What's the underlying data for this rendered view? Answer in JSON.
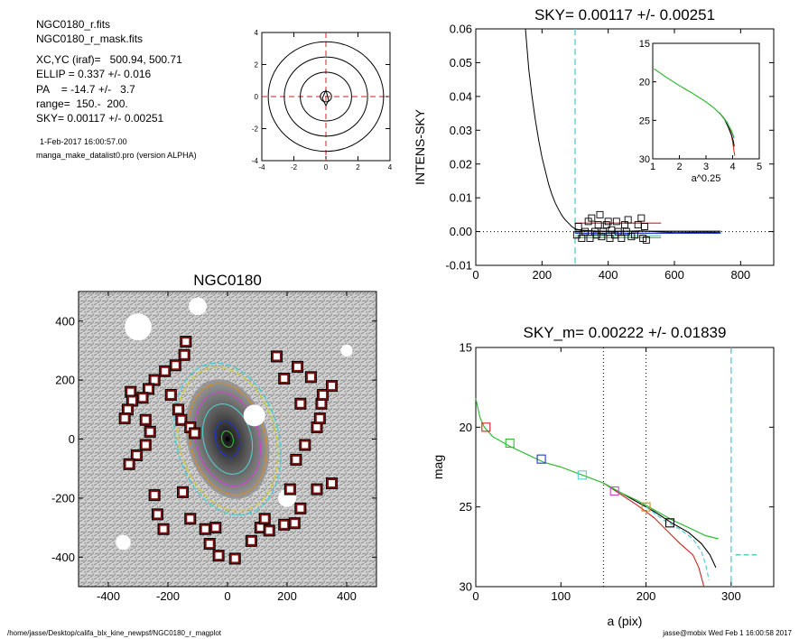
{
  "info": {
    "file1": "NGC0180_r.fits",
    "file2": "NGC0180_r_mask.fits",
    "xcyc": "XC,YC (iraf)=   500.94, 500.71",
    "ellip": "ELLIP = 0.337 +/- 0.016",
    "pa": "PA    = -14.7 +/-   3.7",
    "range": "range=  150.-  200.",
    "sky": "SKY= 0.00117 +/- 0.00251",
    "date": "1-Feb-2017 16:00:57.00",
    "program": "manga_make_datalist0.pro (version ALPHA)"
  },
  "footer": {
    "left": "/home/jasse/Desktop/califa_blx_kine_newpsf/NGC0180_r_magplot",
    "right": "jasse@mobix  Wed Feb  1 16:00:58 2017"
  },
  "colors": {
    "black": "#000000",
    "red": "#cc2222",
    "green": "#33bb33",
    "blue": "#2233cc",
    "cyan": "#55cccc",
    "magenta": "#cc44cc",
    "orange": "#d08a2a",
    "darkred": "#7a1010"
  },
  "chart_data": [
    {
      "id": "contour",
      "type": "contour",
      "xlim": [
        -4,
        4
      ],
      "ylim": [
        -4,
        4
      ],
      "xticks": [
        "-4",
        "-2",
        "0",
        "2",
        "4"
      ],
      "yticks": [
        "-4",
        "-2",
        "0",
        "2",
        "4"
      ],
      "contour_radii": [
        0.35,
        1.6,
        2.6,
        3.6
      ]
    },
    {
      "id": "sky",
      "type": "line",
      "title": "SKY= 0.00117 +/- 0.00251",
      "ylabel": "INTENS-SKY",
      "xlim": [
        0,
        900
      ],
      "ylim": [
        -0.01,
        0.06
      ],
      "xticks": [
        "0",
        "200",
        "400",
        "600",
        "800"
      ],
      "yticks": [
        "-0.01",
        "0.00",
        "0.01",
        "0.02",
        "0.03",
        "0.04",
        "0.05",
        "0.06"
      ],
      "profile": [
        [
          150,
          0.06
        ],
        [
          160,
          0.048
        ],
        [
          170,
          0.04
        ],
        [
          180,
          0.033
        ],
        [
          190,
          0.027
        ],
        [
          200,
          0.022
        ],
        [
          210,
          0.018
        ],
        [
          220,
          0.014
        ],
        [
          230,
          0.011
        ],
        [
          240,
          0.0085
        ],
        [
          250,
          0.0065
        ],
        [
          260,
          0.0048
        ],
        [
          270,
          0.0035
        ],
        [
          280,
          0.0025
        ],
        [
          290,
          0.0015
        ],
        [
          300,
          0.0008
        ],
        [
          320,
          0.0004
        ],
        [
          350,
          0.0002
        ],
        [
          400,
          0.0
        ],
        [
          500,
          0.0002
        ],
        [
          600,
          -0.0003
        ],
        [
          700,
          -0.0002
        ],
        [
          740,
          -0.0003
        ]
      ],
      "squares": [
        [
          305,
          -0.001
        ],
        [
          310,
          0.0015
        ],
        [
          320,
          -0.002
        ],
        [
          330,
          0.0
        ],
        [
          340,
          0.003
        ],
        [
          345,
          -0.002
        ],
        [
          350,
          0.004
        ],
        [
          360,
          0.0
        ],
        [
          365,
          -0.001
        ],
        [
          370,
          0.002
        ],
        [
          375,
          0.005
        ],
        [
          380,
          -0.0015
        ],
        [
          385,
          0.0
        ],
        [
          395,
          0.002
        ],
        [
          400,
          0.003
        ],
        [
          405,
          -0.002
        ],
        [
          410,
          0.0005
        ],
        [
          420,
          -0.001
        ],
        [
          425,
          0.003
        ],
        [
          430,
          0.0
        ],
        [
          440,
          -0.002
        ],
        [
          450,
          0.002
        ],
        [
          455,
          0.0
        ],
        [
          460,
          0.0035
        ],
        [
          470,
          -0.0015
        ],
        [
          480,
          -0.001
        ],
        [
          490,
          0.002
        ],
        [
          500,
          0.004
        ],
        [
          505,
          -0.002
        ],
        [
          510,
          0.0015
        ],
        [
          515,
          -0.0025
        ]
      ],
      "hlines": [
        {
          "color": "red",
          "y": 0.0025,
          "x": [
            300,
            560
          ]
        },
        {
          "color": "green",
          "y": -0.0018,
          "x": [
            300,
            560
          ]
        },
        {
          "color": "blue",
          "y": -0.0005,
          "x": [
            300,
            740
          ]
        },
        {
          "color": "black",
          "y": 0.0001,
          "x": [
            300,
            740
          ]
        },
        {
          "color": "cyan",
          "y": -0.0012,
          "x": [
            300,
            560
          ]
        }
      ],
      "vline_cyan": 300,
      "inset": {
        "xlabel": "a^0.25",
        "xlim": [
          1,
          5
        ],
        "ylim": [
          15,
          30
        ],
        "xticks": [
          "1",
          "2",
          "3",
          "4",
          "5"
        ],
        "yticks": [
          "15",
          "20",
          "25",
          "30"
        ],
        "green": [
          [
            1.05,
            18.3
          ],
          [
            1.5,
            19.4
          ],
          [
            2.0,
            20.5
          ],
          [
            2.5,
            21.5
          ],
          [
            3.0,
            22.6
          ],
          [
            3.3,
            23.4
          ],
          [
            3.6,
            24.4
          ],
          [
            3.8,
            25.4
          ],
          [
            3.95,
            26.3
          ],
          [
            4.05,
            27.2
          ]
        ],
        "red": [
          [
            3.5,
            24.0
          ],
          [
            3.7,
            24.8
          ],
          [
            3.85,
            25.8
          ],
          [
            3.95,
            26.8
          ],
          [
            4.0,
            27.8
          ],
          [
            4.05,
            29.0
          ],
          [
            4.08,
            29.6
          ]
        ],
        "black": [
          [
            3.5,
            24.0
          ],
          [
            3.7,
            24.9
          ],
          [
            3.85,
            26.0
          ],
          [
            3.95,
            26.9
          ],
          [
            4.02,
            27.6
          ],
          [
            4.06,
            28.4
          ]
        ],
        "blue": [
          [
            3.6,
            24.4
          ],
          [
            3.8,
            25.3
          ],
          [
            3.95,
            26.4
          ],
          [
            4.05,
            27.3
          ]
        ]
      }
    },
    {
      "id": "image",
      "type": "image",
      "title": "NGC0180",
      "xlim": [
        -500,
        500
      ],
      "ylim": [
        -500,
        500
      ],
      "xticks": [
        "-400",
        "-200",
        "0",
        "200",
        "400"
      ],
      "yticks": [
        "-400",
        "-200",
        "0",
        "200",
        "400"
      ],
      "squares": [
        [
          -140,
          330
        ],
        [
          -145,
          285
        ],
        [
          -175,
          250
        ],
        [
          -210,
          230
        ],
        [
          -245,
          200
        ],
        [
          -265,
          170
        ],
        [
          -285,
          140
        ],
        [
          -190,
          150
        ],
        [
          -165,
          100
        ],
        [
          -155,
          65
        ],
        [
          -125,
          40
        ],
        [
          -110,
          20
        ],
        [
          -325,
          160
        ],
        [
          -320,
          130
        ],
        [
          -335,
          100
        ],
        [
          -345,
          70
        ],
        [
          -275,
          65
        ],
        [
          -260,
          25
        ],
        [
          -275,
          -20
        ],
        [
          -305,
          -55
        ],
        [
          -330,
          -85
        ],
        [
          -245,
          -190
        ],
        [
          -235,
          -255
        ],
        [
          -215,
          -305
        ],
        [
          -125,
          -270
        ],
        [
          -75,
          -305
        ],
        [
          -60,
          -355
        ],
        [
          -30,
          -395
        ],
        [
          25,
          -405
        ],
        [
          80,
          -345
        ],
        [
          110,
          -300
        ],
        [
          190,
          -290
        ],
        [
          225,
          -285
        ],
        [
          245,
          -235
        ],
        [
          300,
          -170
        ],
        [
          350,
          -150
        ],
        [
          230,
          -70
        ],
        [
          260,
          -20
        ],
        [
          300,
          40
        ],
        [
          310,
          70
        ],
        [
          315,
          120
        ],
        [
          320,
          150
        ],
        [
          350,
          180
        ],
        [
          280,
          210
        ],
        [
          235,
          245
        ],
        [
          165,
          280
        ],
        [
          190,
          205
        ],
        [
          245,
          120
        ],
        [
          210,
          -170
        ],
        [
          125,
          -270
        ],
        [
          -40,
          -300
        ],
        [
          140,
          -310
        ],
        [
          -150,
          -180
        ]
      ],
      "ellipses": [
        {
          "color": "cyan",
          "a": 260,
          "b": 172,
          "dashed": true
        },
        {
          "color": "yellow",
          "a": 245,
          "b": 162,
          "dashed": true
        },
        {
          "color": "orange",
          "a": 190,
          "b": 126,
          "dashed": false
        },
        {
          "color": "magenta",
          "a": 160,
          "b": 106,
          "dashed": false
        },
        {
          "color": "cyan",
          "a": 120,
          "b": 80,
          "dashed": false
        },
        {
          "color": "blue",
          "a": 60,
          "b": 40,
          "dashed": false
        },
        {
          "color": "green",
          "a": 28,
          "b": 19,
          "dashed": false
        }
      ]
    },
    {
      "id": "mag",
      "type": "line",
      "title": "SKY_m=  0.00222 +/- 0.01839",
      "xlabel": "a (pix)",
      "ylabel": "mag",
      "xlim": [
        0,
        350
      ],
      "ylim": [
        15,
        30
      ],
      "xticks": [
        "0",
        "100",
        "200",
        "300"
      ],
      "yticks": [
        "15",
        "20",
        "25",
        "30"
      ],
      "green": [
        [
          0,
          18.2
        ],
        [
          5,
          19.4
        ],
        [
          10,
          20.0
        ],
        [
          20,
          20.6
        ],
        [
          40,
          21.2
        ],
        [
          60,
          21.7
        ],
        [
          80,
          22.2
        ],
        [
          100,
          22.5
        ],
        [
          130,
          23.1
        ],
        [
          150,
          23.5
        ],
        [
          170,
          24.1
        ],
        [
          190,
          24.6
        ],
        [
          210,
          25.2
        ],
        [
          230,
          25.8
        ],
        [
          250,
          26.3
        ],
        [
          270,
          26.8
        ],
        [
          285,
          27.0
        ]
      ],
      "black": [
        [
          150,
          23.5
        ],
        [
          170,
          24.1
        ],
        [
          190,
          24.7
        ],
        [
          210,
          25.3
        ],
        [
          230,
          26.0
        ],
        [
          250,
          26.6
        ],
        [
          265,
          27.3
        ],
        [
          275,
          28.0
        ],
        [
          282,
          28.8
        ]
      ],
      "red": [
        [
          150,
          23.5
        ],
        [
          170,
          24.2
        ],
        [
          190,
          24.9
        ],
        [
          210,
          25.7
        ],
        [
          225,
          26.5
        ],
        [
          240,
          27.3
        ],
        [
          255,
          28.0
        ],
        [
          262,
          28.8
        ],
        [
          268,
          30.0
        ]
      ],
      "cyan_dash": [
        [
          200,
          25.0
        ],
        [
          220,
          25.8
        ],
        [
          240,
          26.4
        ],
        [
          255,
          27.0
        ],
        [
          265,
          27.8
        ],
        [
          270,
          28.6
        ],
        [
          274,
          29.6
        ]
      ],
      "squares": [
        {
          "x": 12,
          "y": 20.0,
          "c": "red"
        },
        {
          "x": 40,
          "y": 21.0,
          "c": "green"
        },
        {
          "x": 77,
          "y": 22.0,
          "c": "blue"
        },
        {
          "x": 125,
          "y": 23.0,
          "c": "cyan"
        },
        {
          "x": 163,
          "y": 24.0,
          "c": "magenta"
        },
        {
          "x": 200,
          "y": 25.0,
          "c": "orange"
        },
        {
          "x": 228,
          "y": 26.0,
          "c": "black"
        }
      ],
      "vlines_dotted": [
        150,
        200
      ],
      "vline_cyan": 300,
      "sky_level_dash": {
        "y": 28.0,
        "x": [
          305,
          330
        ]
      }
    }
  ]
}
